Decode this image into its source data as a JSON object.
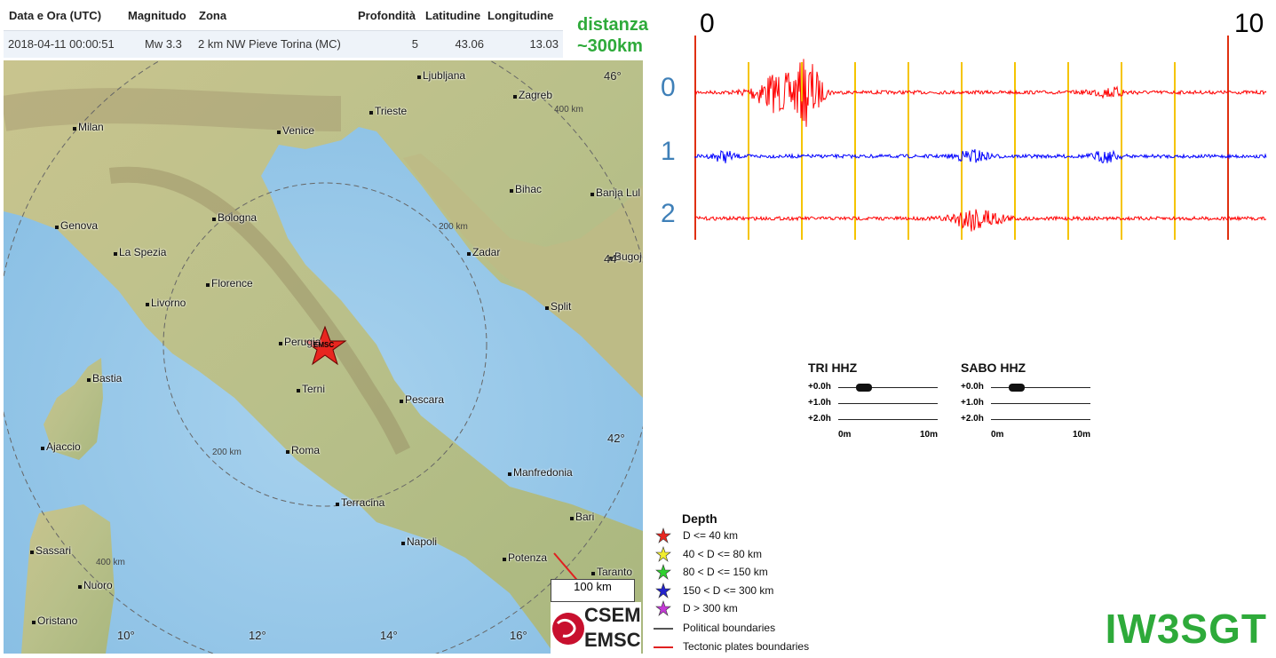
{
  "table": {
    "headers": [
      "Data e Ora (UTC)",
      "Magnitudo",
      "Zona",
      "Profondità",
      "Latitudine",
      "Longitudine"
    ],
    "row": {
      "datetime": "2018-04-11 00:00:51",
      "magnitude": "Mw 3.3",
      "zone": "2 km NW Pieve Torina (MC)",
      "depth": "5",
      "lat": "43.06",
      "lon": "13.03"
    }
  },
  "distance_note": {
    "line1": "distanza",
    "line2": "~300km"
  },
  "map": {
    "cities": [
      {
        "name": "Ljubljana"
      },
      {
        "name": "Zagreb"
      },
      {
        "name": "Milan"
      },
      {
        "name": "Venice"
      },
      {
        "name": "Trieste"
      },
      {
        "name": "Bihac"
      },
      {
        "name": "Banja Lul"
      },
      {
        "name": "Genova"
      },
      {
        "name": "Bologna"
      },
      {
        "name": "La Spezia"
      },
      {
        "name": "Zadar"
      },
      {
        "name": "Bugoj"
      },
      {
        "name": "Florence"
      },
      {
        "name": "Livorno"
      },
      {
        "name": "Split"
      },
      {
        "name": "Perugia"
      },
      {
        "name": "Bastia"
      },
      {
        "name": "Terni"
      },
      {
        "name": "Pescara"
      },
      {
        "name": "Ajaccio"
      },
      {
        "name": "Roma"
      },
      {
        "name": "Manfredonia"
      },
      {
        "name": "Terracina"
      },
      {
        "name": "Bari"
      },
      {
        "name": "Sassari"
      },
      {
        "name": "Napoli"
      },
      {
        "name": "Potenza"
      },
      {
        "name": "Taranto"
      },
      {
        "name": "Nuoro"
      },
      {
        "name": "Oristano"
      }
    ],
    "lat_labels": [
      "46°",
      "44°",
      "42°"
    ],
    "lon_labels": [
      "10°",
      "12°",
      "14°",
      "16°"
    ],
    "ring_labels": [
      "400 km",
      "200 km",
      "200 km",
      "400 km"
    ],
    "epicenter_label": "EMSC",
    "scale_bar": "100 km",
    "logo_top": "CSEM",
    "logo_bottom": "EMSC"
  },
  "seismogram": {
    "scale_start": "0",
    "scale_end": "10",
    "traces": [
      {
        "label": "0",
        "color": "#ff0000"
      },
      {
        "label": "1",
        "color": "#0000ff"
      },
      {
        "label": "2",
        "color": "#ff0000"
      }
    ]
  },
  "mini_seismograms": [
    {
      "title": "TRI HHZ",
      "rows": [
        "+0.0h",
        "+1.0h",
        "+2.0h"
      ],
      "axis_start": "0m",
      "axis_end": "10m"
    },
    {
      "title": "SABO HHZ",
      "rows": [
        "+0.0h",
        "+1.0h",
        "+2.0h"
      ],
      "axis_start": "0m",
      "axis_end": "10m"
    }
  ],
  "legend": {
    "title": "Depth",
    "depth_items": [
      {
        "label": "D <= 40 km",
        "color": "#e8261f"
      },
      {
        "label": "40 < D <= 80 km",
        "color": "#f2ee2e"
      },
      {
        "label": "80 < D <= 150 km",
        "color": "#2ed12e"
      },
      {
        "label": "150 < D <= 300 km",
        "color": "#2222cc"
      },
      {
        "label": "D > 300 km",
        "color": "#c43ad6"
      }
    ],
    "boundaries": [
      {
        "label": "Political boundaries",
        "color": "#555555"
      },
      {
        "label": "Tectonic plates boundaries",
        "color": "#e02020"
      }
    ]
  },
  "callsign": "IW3SGT"
}
